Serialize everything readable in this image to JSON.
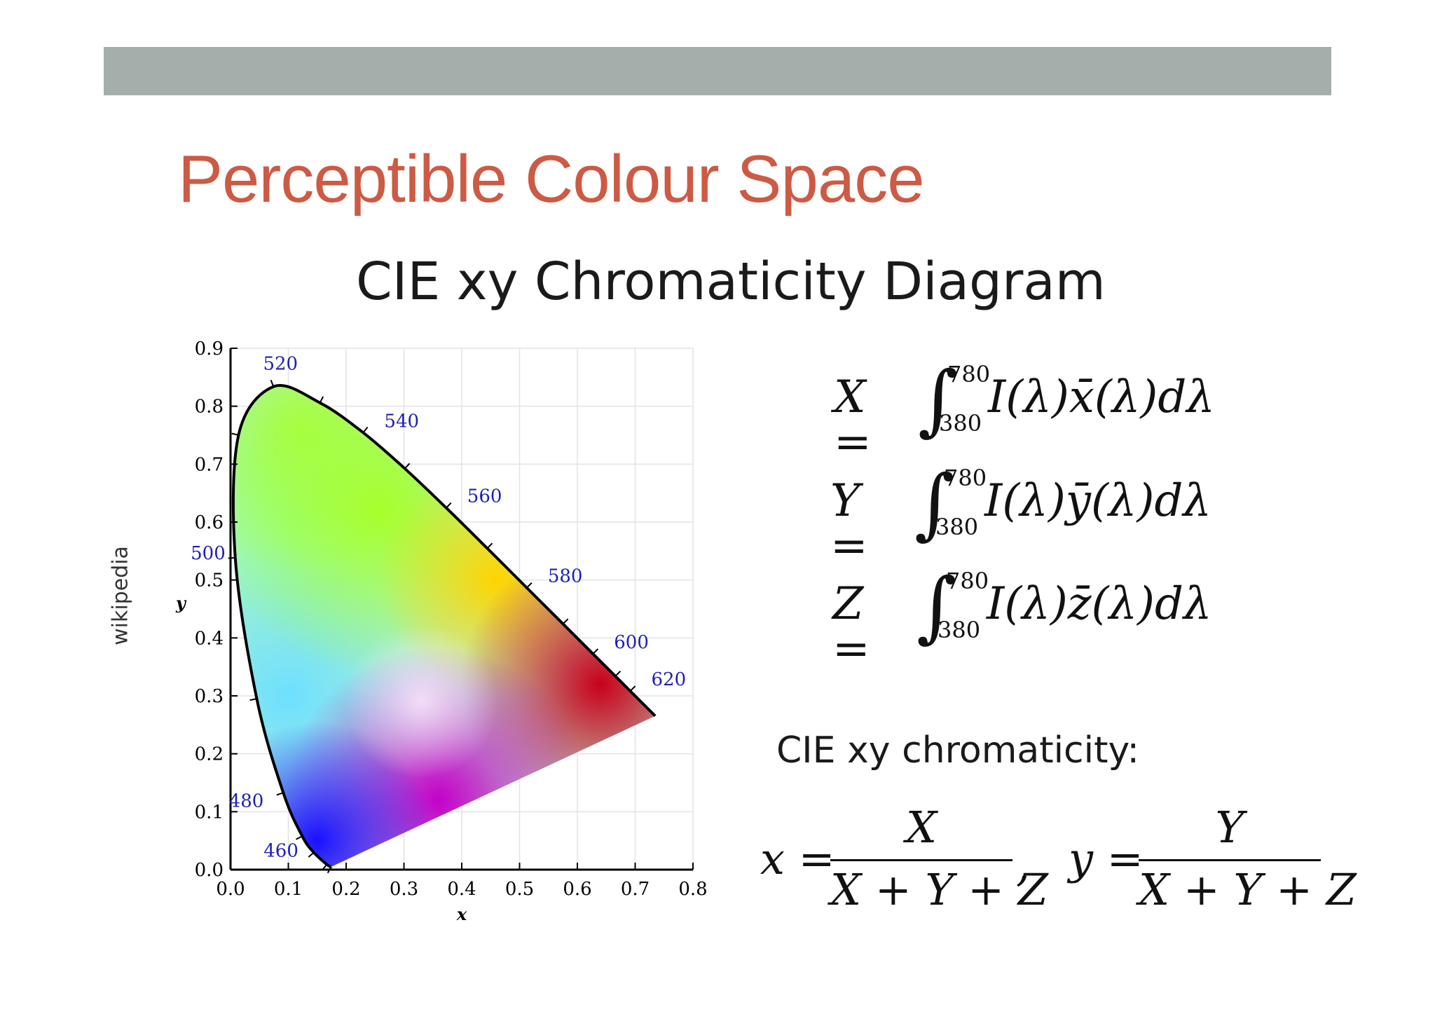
{
  "slide": {
    "title": "Perceptible Colour Space",
    "diagram_title": "CIE xy Chromaticity Diagram",
    "source": "wikipedia",
    "colors": {
      "title": "#cc5a45",
      "bar": "#a4aeaa",
      "wavelength_label": "#1f1fb4"
    }
  },
  "equations": {
    "X": {
      "lhs": "X =",
      "upper": "780",
      "lower": "380",
      "body": "I(λ)x̄(λ)dλ"
    },
    "Y": {
      "lhs": "Y =",
      "upper": "780",
      "lower": "380",
      "body": "I(λ)ȳ(λ)dλ"
    },
    "Z": {
      "lhs": "Z =",
      "upper": "780",
      "lower": "380",
      "body": "I(λ)z̄(λ)dλ"
    }
  },
  "chromaticity": {
    "subtitle": "CIE xy chromaticity:",
    "x_lhs": "x =",
    "x_num": "X",
    "x_den": "X + Y + Z",
    "sep": ",",
    "y_lhs": "y =",
    "y_num": "Y",
    "y_den": "X + Y + Z"
  },
  "chart_data": {
    "type": "scatter",
    "xlabel": "x",
    "ylabel": "y",
    "xlim": [
      0,
      0.8
    ],
    "ylim": [
      0,
      0.9
    ],
    "x_ticks": [
      "0.0",
      "0.1",
      "0.2",
      "0.3",
      "0.4",
      "0.5",
      "0.6",
      "0.7",
      "0.8"
    ],
    "y_ticks": [
      "0.0",
      "0.1",
      "0.2",
      "0.3",
      "0.4",
      "0.5",
      "0.6",
      "0.7",
      "0.8",
      "0.9"
    ],
    "grid": true,
    "spectral_locus": [
      [
        0.1741,
        0.005
      ],
      [
        0.1738,
        0.0049
      ],
      [
        0.1666,
        0.0089
      ],
      [
        0.144,
        0.0297
      ],
      [
        0.1241,
        0.0578
      ],
      [
        0.0913,
        0.1327
      ],
      [
        0.0454,
        0.295
      ],
      [
        0.0082,
        0.5384
      ],
      [
        0.0139,
        0.7502
      ],
      [
        0.0743,
        0.8338
      ],
      [
        0.1547,
        0.8059
      ],
      [
        0.2296,
        0.7543
      ],
      [
        0.3016,
        0.6923
      ],
      [
        0.3731,
        0.6245
      ],
      [
        0.4441,
        0.5547
      ],
      [
        0.5125,
        0.4866
      ],
      [
        0.5752,
        0.4242
      ],
      [
        0.627,
        0.3725
      ],
      [
        0.6658,
        0.334
      ],
      [
        0.6915,
        0.3083
      ],
      [
        0.7347,
        0.2653
      ]
    ],
    "wavelength_labels": [
      {
        "label": "460",
        "x": 0.1441,
        "y": 0.0297
      },
      {
        "label": "480",
        "x": 0.0913,
        "y": 0.1327
      },
      {
        "label": "500",
        "x": 0.0082,
        "y": 0.5384
      },
      {
        "label": "520",
        "x": 0.0743,
        "y": 0.8338
      },
      {
        "label": "540",
        "x": 0.2296,
        "y": 0.7543
      },
      {
        "label": "560",
        "x": 0.3731,
        "y": 0.6245
      },
      {
        "label": "580",
        "x": 0.5125,
        "y": 0.4866
      },
      {
        "label": "600",
        "x": 0.627,
        "y": 0.3725
      },
      {
        "label": "620",
        "x": 0.6915,
        "y": 0.3083
      }
    ]
  }
}
